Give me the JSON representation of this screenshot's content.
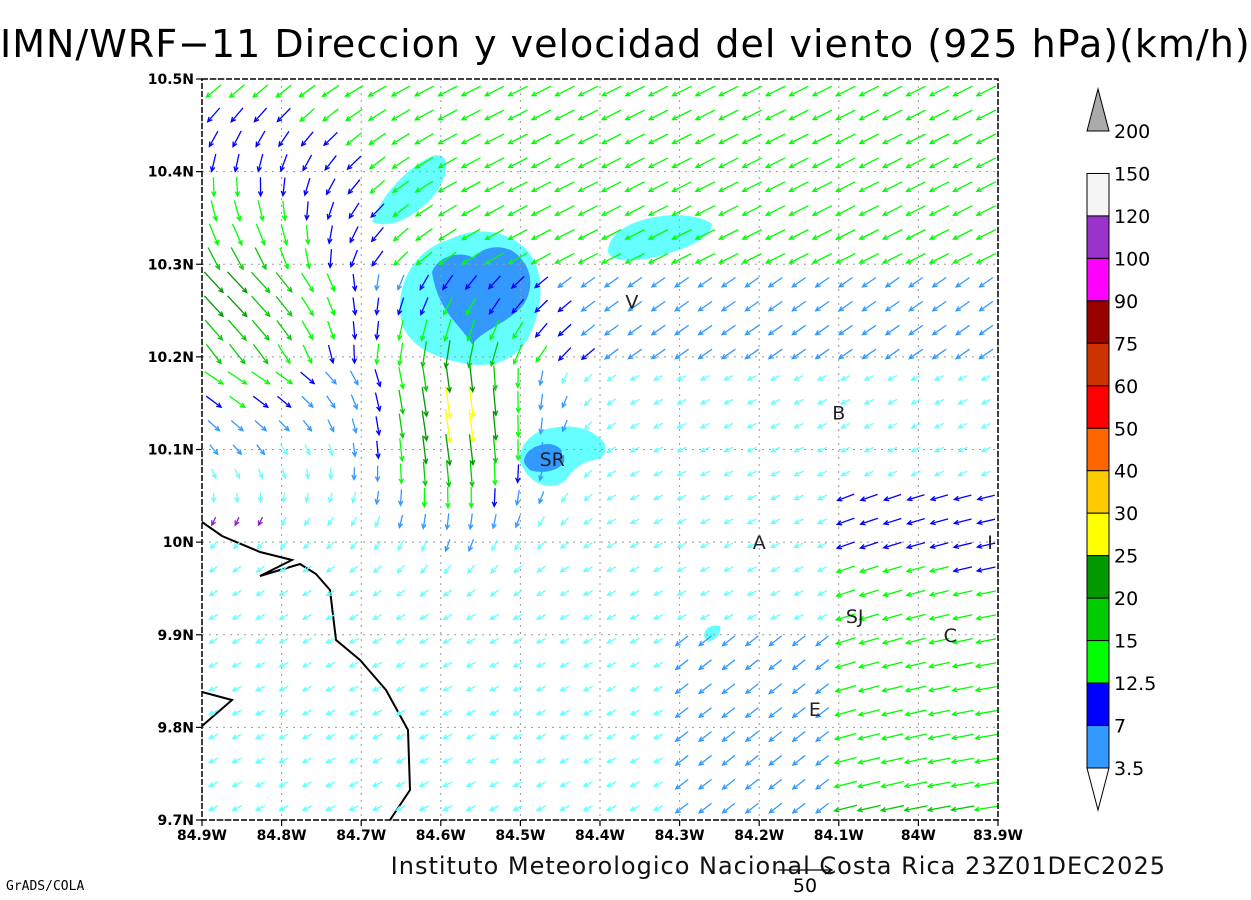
{
  "title": "IMN/WRF−11 Direccion y velocidad del viento (925 hPa)(km/h)",
  "footer": "Instituto Meteorologico Nacional Costa Rica  23Z01DEC2025",
  "software": "GrADS/COLA",
  "map": {
    "x_ticks": [
      "84.9W",
      "84.8W",
      "84.7W",
      "84.6W",
      "84.5W",
      "84.4W",
      "84.3W",
      "84.2W",
      "84.1W",
      "84W",
      "83.9W"
    ],
    "y_ticks": [
      "10.5N",
      "10.4N",
      "10.3N",
      "10.2N",
      "10.1N",
      "10N",
      "9.9N",
      "9.8N",
      "9.7N"
    ],
    "lon_range": [
      -84.9,
      -83.9
    ],
    "lat_range": [
      9.7,
      10.5
    ],
    "grid": true,
    "places": [
      {
        "label": "V",
        "lon": -84.36,
        "lat": 10.26
      },
      {
        "label": "B",
        "lon": -84.1,
        "lat": 10.14
      },
      {
        "label": "SR",
        "lon": -84.46,
        "lat": 10.09
      },
      {
        "label": "A",
        "lon": -84.2,
        "lat": 10.0
      },
      {
        "label": "I",
        "lon": -83.91,
        "lat": 10.0
      },
      {
        "label": "SJ",
        "lon": -84.08,
        "lat": 9.92
      },
      {
        "label": "C",
        "lon": -83.96,
        "lat": 9.9
      },
      {
        "label": "E",
        "lon": -84.13,
        "lat": 9.82
      }
    ],
    "reference_vector": {
      "label": "50",
      "value": 50
    }
  },
  "legend": {
    "levels": [
      "3.5",
      "7",
      "12.5",
      "15",
      "20",
      "25",
      "30",
      "40",
      "50",
      "60",
      "75",
      "90",
      "100",
      "120",
      "150",
      "200"
    ],
    "colors": [
      "#66ffff",
      "#3399ff",
      "#0000ff",
      "#00ff00",
      "#00cc00",
      "#009900",
      "#ffff00",
      "#ffcc00",
      "#ff6600",
      "#ff0000",
      "#cc3300",
      "#990000",
      "#ff00ff",
      "#9933cc",
      "#f5f5f5",
      "#aaaaaa"
    ]
  },
  "colors": {
    "shade_light": "#66ffff",
    "shade_mid": "#3399ff",
    "coastline": "#000000"
  }
}
